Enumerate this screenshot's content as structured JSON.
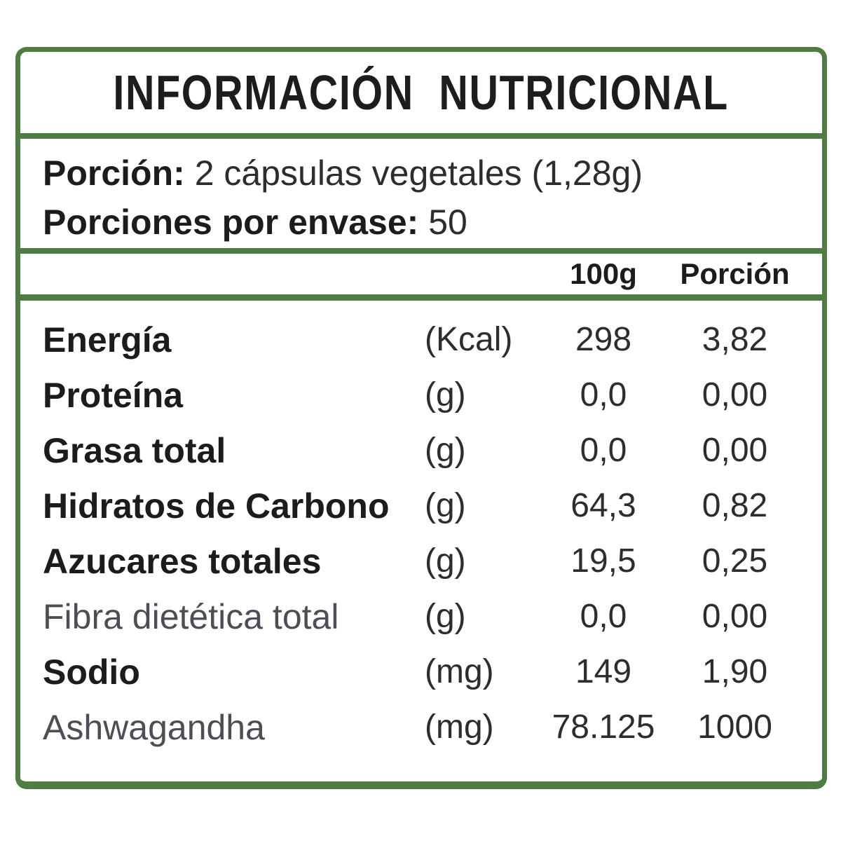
{
  "label": {
    "title": "INFORMACIÓN NUTRICIONAL",
    "serving": {
      "porcion_label": "Porción:",
      "porcion_value": "2 cápsulas vegetales (1,28g)",
      "envase_label": "Porciones por envase:",
      "envase_value": "50"
    },
    "columns": {
      "per100": "100g",
      "portion": "Porción"
    },
    "rows": [
      {
        "name": "Energía",
        "unit": "(Kcal)",
        "per100": "298",
        "portion": "3,82",
        "emphasis": "bold"
      },
      {
        "name": "Proteína",
        "unit": "(g)",
        "per100": "0,0",
        "portion": "0,00",
        "emphasis": "bold"
      },
      {
        "name": "Grasa total",
        "unit": "(g)",
        "per100": "0,0",
        "portion": "0,00",
        "emphasis": "bold"
      },
      {
        "name": "Hidratos de Carbono",
        "unit": "(g)",
        "per100": "64,3",
        "portion": "0,82",
        "emphasis": "bold"
      },
      {
        "name": "Azucares totales",
        "unit": "(g)",
        "per100": "19,5",
        "portion": "0,25",
        "emphasis": "bold"
      },
      {
        "name": "Fibra dietética total",
        "unit": "(g)",
        "per100": "0,0",
        "portion": "0,00",
        "emphasis": "light"
      },
      {
        "name": "Sodio",
        "unit": "(mg)",
        "per100": "149",
        "portion": "1,90",
        "emphasis": "bold"
      },
      {
        "name": "Ashwagandha",
        "unit": "(mg)",
        "per100": "78.125",
        "portion": "1000",
        "emphasis": "light"
      }
    ],
    "colors": {
      "border_green": "#4e7c42",
      "text_dark": "#1c1c1e",
      "text_gray": "#4d4d55"
    }
  }
}
